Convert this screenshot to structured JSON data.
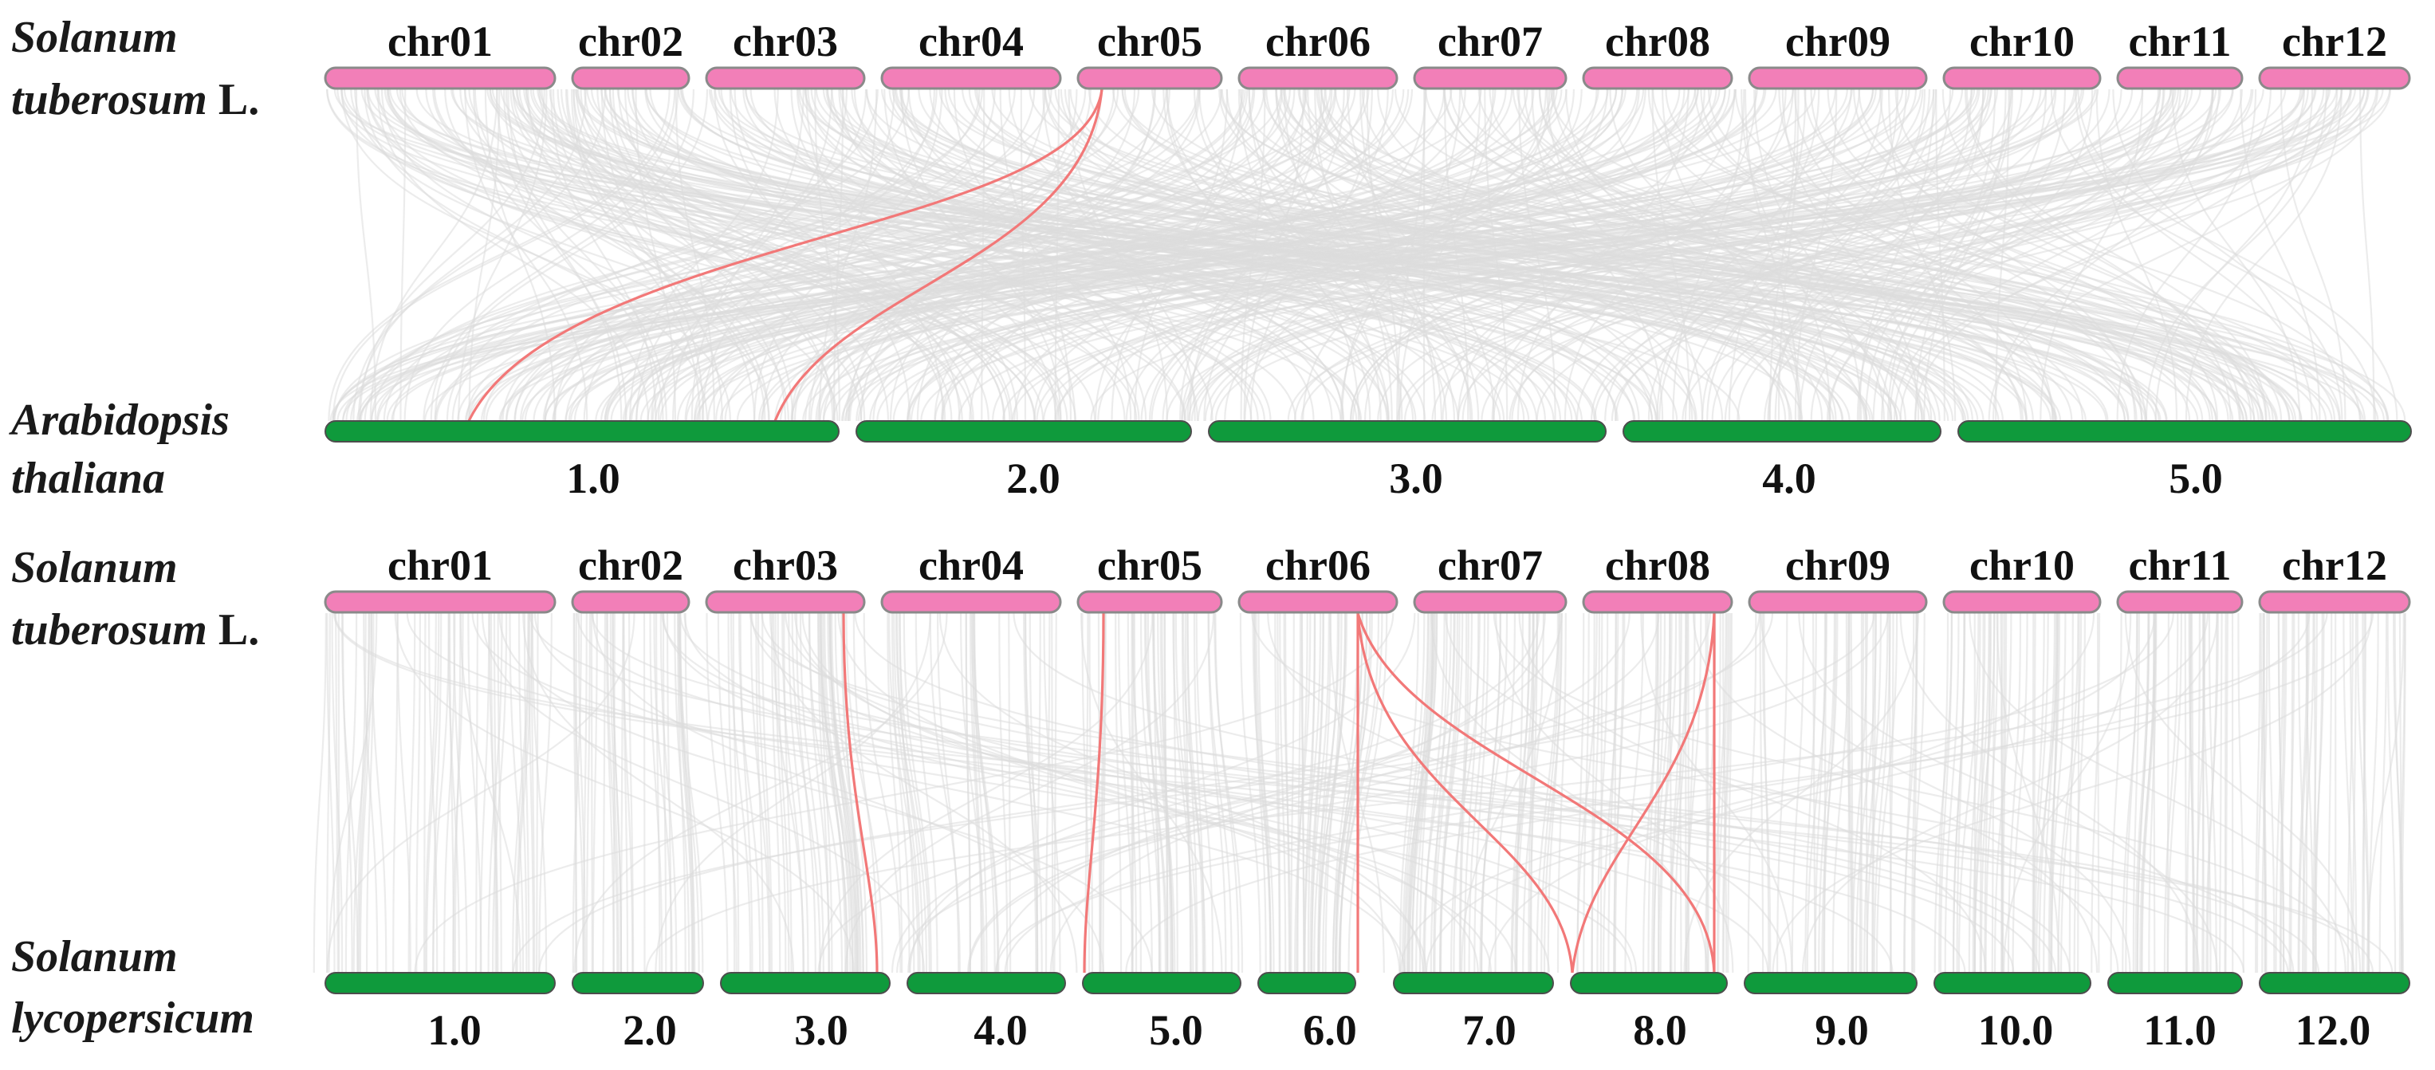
{
  "panels": [
    {
      "top_species": {
        "italic": "Solanum",
        "italic2": "tuberosum",
        "plain": "L."
      },
      "bottom_species": {
        "italic": "Arabidopsis",
        "italic2": "thaliana",
        "plain": ""
      },
      "top_chromosomes": [
        "chr01",
        "chr02",
        "chr03",
        "chr04",
        "chr05",
        "chr06",
        "chr07",
        "chr08",
        "chr09",
        "chr10",
        "chr11",
        "chr12"
      ],
      "bottom_chromosomes": [
        "1.0",
        "2.0",
        "3.0",
        "4.0",
        "5.0"
      ],
      "highlighted_links": [
        {
          "from": "chr05",
          "to": "1.0"
        },
        {
          "from": "chr05",
          "to": "1.0"
        }
      ]
    },
    {
      "top_species": {
        "italic": "Solanum",
        "italic2": "tuberosum",
        "plain": "L."
      },
      "bottom_species": {
        "italic": "Solanum",
        "italic2": "lycopersicum",
        "plain": ""
      },
      "top_chromosomes": [
        "chr01",
        "chr02",
        "chr03",
        "chr04",
        "chr05",
        "chr06",
        "chr07",
        "chr08",
        "chr09",
        "chr10",
        "chr11",
        "chr12"
      ],
      "bottom_chromosomes": [
        "1.0",
        "2.0",
        "3.0",
        "4.0",
        "5.0",
        "6.0",
        "7.0",
        "8.0",
        "9.0",
        "10.0",
        "11.0",
        "12.0"
      ],
      "highlighted_links": [
        {
          "from": "chr03",
          "to": "3.0"
        },
        {
          "from": "chr05",
          "to": "5.0"
        },
        {
          "from": "chr06",
          "to": "6.0"
        },
        {
          "from": "chr06",
          "to": "8.0"
        },
        {
          "from": "chr06",
          "to": "8.0"
        },
        {
          "from": "chr08",
          "to": "8.0"
        },
        {
          "from": "chr08",
          "to": "7.0"
        }
      ]
    }
  ],
  "colors": {
    "top_chromosome": "#f27fb8",
    "bottom_chromosome": "#0f9a3c",
    "background_link": "#dcdcdc",
    "highlighted_link": "#f27878"
  }
}
